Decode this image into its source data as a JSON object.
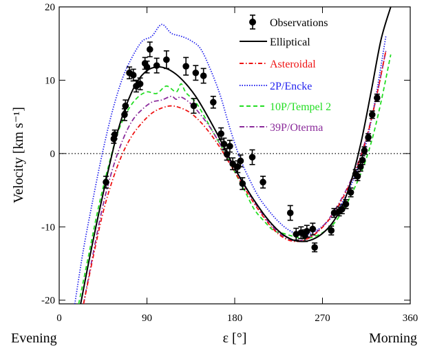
{
  "chart_data": {
    "type": "line",
    "xlabel": "ε [°]",
    "ylabel": "Velocity [km s⁻¹]",
    "xlim": [
      0,
      360
    ],
    "ylim": [
      -20.5,
      20
    ],
    "xticks": [
      0,
      90,
      180,
      270,
      360
    ],
    "yticks": [
      -20,
      -10,
      0,
      10,
      20
    ],
    "x_end_labels": {
      "left": "Evening",
      "right": "Morning"
    },
    "reference_line": {
      "y": 0,
      "style": "dotted"
    },
    "legend_position": "top-right",
    "observations": {
      "name": "Observations",
      "color": "#000000",
      "points": [
        {
          "x": 48,
          "y": -3.9,
          "err": 0.8
        },
        {
          "x": 56,
          "y": 2.0,
          "err": 0.6
        },
        {
          "x": 57,
          "y": 2.6,
          "err": 0.6
        },
        {
          "x": 67,
          "y": 5.3,
          "err": 0.8
        },
        {
          "x": 68,
          "y": 6.5,
          "err": 0.8
        },
        {
          "x": 72,
          "y": 11.0,
          "err": 0.8
        },
        {
          "x": 76,
          "y": 10.7,
          "err": 0.8
        },
        {
          "x": 79,
          "y": 9.2,
          "err": 0.8
        },
        {
          "x": 83,
          "y": 9.5,
          "err": 0.8
        },
        {
          "x": 88,
          "y": 12.3,
          "err": 0.8
        },
        {
          "x": 90,
          "y": 11.8,
          "err": 0.8
        },
        {
          "x": 93,
          "y": 14.2,
          "err": 1.0
        },
        {
          "x": 100,
          "y": 12.0,
          "err": 1.0
        },
        {
          "x": 110,
          "y": 12.8,
          "err": 1.2
        },
        {
          "x": 130,
          "y": 11.9,
          "err": 1.2
        },
        {
          "x": 138,
          "y": 6.5,
          "err": 1.0
        },
        {
          "x": 140,
          "y": 11.0,
          "err": 1.0
        },
        {
          "x": 148,
          "y": 10.6,
          "err": 1.0
        },
        {
          "x": 158,
          "y": 7.0,
          "err": 0.8
        },
        {
          "x": 166,
          "y": 2.7,
          "err": 0.8
        },
        {
          "x": 169,
          "y": 1.3,
          "err": 0.8
        },
        {
          "x": 172,
          "y": -0.1,
          "err": 0.8
        },
        {
          "x": 175,
          "y": 1.0,
          "err": 0.8
        },
        {
          "x": 178,
          "y": -1.4,
          "err": 0.8
        },
        {
          "x": 183,
          "y": -1.8,
          "err": 0.8
        },
        {
          "x": 186,
          "y": -1.0,
          "err": 0.8
        },
        {
          "x": 188,
          "y": -4.1,
          "err": 0.8
        },
        {
          "x": 198,
          "y": -0.5,
          "err": 1.0
        },
        {
          "x": 209,
          "y": -3.9,
          "err": 0.8
        },
        {
          "x": 237,
          "y": -8.1,
          "err": 1.0
        },
        {
          "x": 243,
          "y": -11.0,
          "err": 0.8
        },
        {
          "x": 248,
          "y": -10.8,
          "err": 0.8
        },
        {
          "x": 252,
          "y": -11.2,
          "err": 0.8
        },
        {
          "x": 254,
          "y": -10.6,
          "err": 0.8
        },
        {
          "x": 260,
          "y": -10.3,
          "err": 0.8
        },
        {
          "x": 262,
          "y": -12.8,
          "err": 0.6
        },
        {
          "x": 279,
          "y": -10.5,
          "err": 0.6
        },
        {
          "x": 282,
          "y": -8.1,
          "err": 0.6
        },
        {
          "x": 287,
          "y": -7.9,
          "err": 0.6
        },
        {
          "x": 290,
          "y": -7.6,
          "err": 0.6
        },
        {
          "x": 294,
          "y": -6.9,
          "err": 0.6
        },
        {
          "x": 299,
          "y": -5.3,
          "err": 0.6
        },
        {
          "x": 304,
          "y": -2.8,
          "err": 0.6
        },
        {
          "x": 306,
          "y": -3.1,
          "err": 0.6
        },
        {
          "x": 309,
          "y": -1.8,
          "err": 0.6
        },
        {
          "x": 311,
          "y": -0.9,
          "err": 0.6
        },
        {
          "x": 313,
          "y": 0.4,
          "err": 0.5
        },
        {
          "x": 317,
          "y": 2.2,
          "err": 0.5
        },
        {
          "x": 321,
          "y": 5.3,
          "err": 0.5
        },
        {
          "x": 326,
          "y": 7.6,
          "err": 0.5
        }
      ]
    },
    "series": [
      {
        "name": "Elliptical",
        "color": "#000000",
        "dash": "none",
        "x": [
          22,
          30,
          40,
          50,
          60,
          70,
          80,
          90,
          100,
          110,
          120,
          130,
          140,
          150,
          160,
          170,
          180,
          190,
          200,
          210,
          220,
          230,
          240,
          250,
          260,
          270,
          280,
          290,
          300,
          310,
          320,
          330,
          340
        ],
        "y": [
          -20.5,
          -15,
          -8.5,
          -2.5,
          3,
          7,
          9.8,
          11.3,
          11.8,
          11.6,
          10.8,
          9.5,
          7.8,
          5.6,
          3.2,
          0.6,
          -2,
          -4.3,
          -6.4,
          -8.3,
          -9.9,
          -11.1,
          -11.8,
          -12.0,
          -11.7,
          -10.9,
          -9.5,
          -7.2,
          -3.5,
          1.8,
          8.5,
          15.5,
          20
        ]
      },
      {
        "name": "Asteroidal",
        "color": "#ee1111",
        "dash": "6,3,1.5,3",
        "x": [
          25,
          35,
          45,
          55,
          65,
          75,
          85,
          95,
          105,
          115,
          125,
          135,
          145,
          155,
          165,
          175,
          185,
          195,
          205,
          215,
          225,
          235,
          245,
          255,
          265,
          275,
          285,
          295,
          305,
          315,
          325,
          335
        ],
        "y": [
          -20.5,
          -14,
          -8,
          -3.5,
          0,
          2.5,
          4.2,
          5.5,
          6.2,
          6.5,
          6.2,
          5.5,
          4.3,
          2.7,
          0.8,
          -1.4,
          -3.6,
          -5.8,
          -7.8,
          -9.6,
          -11.0,
          -11.8,
          -12.0,
          -11.6,
          -10.7,
          -9.3,
          -7.4,
          -5.0,
          -2.0,
          2.0,
          7.5,
          14
        ]
      },
      {
        "name": "2P/Encke",
        "color": "#2222ee",
        "dash": "1.5,2",
        "x": [
          16,
          25,
          35,
          45,
          55,
          65,
          75,
          85,
          95,
          105,
          115,
          125,
          135,
          145,
          155,
          165,
          175,
          185,
          195,
          205,
          215,
          225,
          235,
          245,
          255,
          265,
          275,
          285,
          295,
          305,
          315,
          325,
          335
        ],
        "y": [
          -20.5,
          -13,
          -6,
          0.5,
          6,
          10.3,
          13.2,
          15.3,
          16.0,
          17.6,
          16.4,
          16.0,
          15.4,
          14.3,
          11.5,
          8.0,
          3.5,
          -0.5,
          -3.5,
          -6.0,
          -7.8,
          -9.3,
          -10.4,
          -11.0,
          -11.0,
          -10.4,
          -9.3,
          -7.8,
          -5.5,
          -2.5,
          1.5,
          8.0,
          16
        ]
      },
      {
        "name": "10P/Tempel 2",
        "color": "#22dd22",
        "dash": "6,4",
        "x": [
          20,
          30,
          40,
          50,
          60,
          70,
          80,
          90,
          100,
          110,
          120,
          125,
          130,
          140,
          150,
          160,
          170,
          180,
          190,
          200,
          210,
          220,
          230,
          240,
          250,
          260,
          270,
          280,
          290,
          300,
          310,
          320,
          330,
          340
        ],
        "y": [
          -20.5,
          -14,
          -7.5,
          -2,
          2.8,
          5.8,
          7.6,
          8.4,
          8.2,
          9.2,
          8.4,
          9.5,
          8.3,
          7.0,
          4.8,
          2.4,
          0.1,
          -2.5,
          -5.0,
          -7.6,
          -9.2,
          -10.5,
          -10.9,
          -11.3,
          -11.6,
          -11.4,
          -10.8,
          -9.8,
          -8.0,
          -5.5,
          -2.5,
          1.5,
          7.0,
          13.5
        ]
      },
      {
        "name": "39P/Oterma",
        "color": "#8a2a9a",
        "dash": "7,3,1.5,3",
        "x": [
          25,
          35,
          45,
          55,
          65,
          75,
          85,
          95,
          105,
          115,
          120,
          125,
          135,
          145,
          155,
          165,
          175,
          185,
          195,
          205,
          215,
          225,
          235,
          245,
          255,
          265,
          275,
          285,
          295,
          305,
          315,
          325,
          335
        ],
        "y": [
          -20.5,
          -13.5,
          -7,
          -2,
          1.8,
          4.5,
          6.0,
          7.0,
          7.3,
          7.8,
          7.4,
          7.7,
          6.8,
          5.3,
          3.5,
          1.3,
          -1.0,
          -3.3,
          -5.5,
          -7.6,
          -9.4,
          -10.8,
          -11.7,
          -11.9,
          -11.5,
          -10.6,
          -9.2,
          -7.2,
          -4.8,
          -1.8,
          2.2,
          7.5,
          14
        ]
      }
    ]
  }
}
